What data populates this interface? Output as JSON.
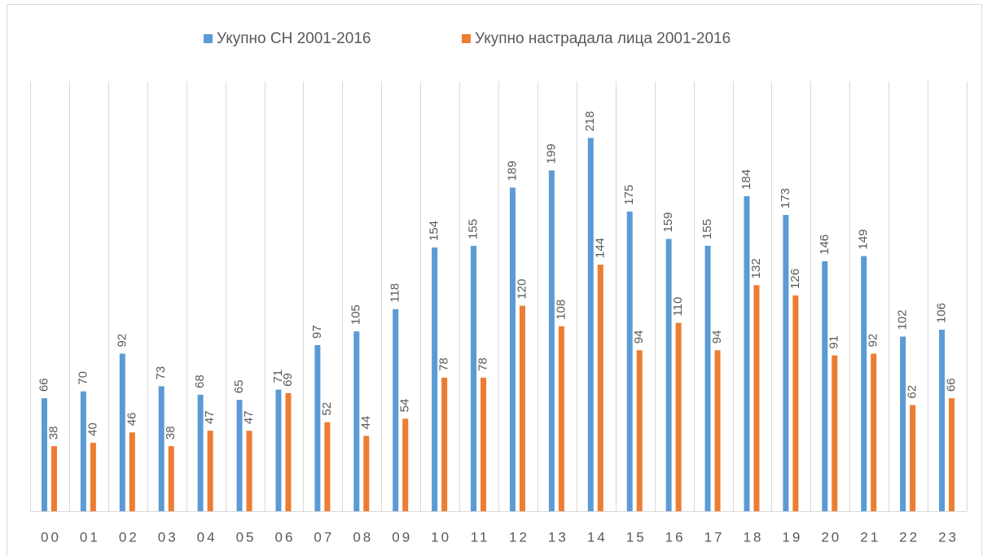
{
  "chart_data": {
    "type": "bar",
    "categories": [
      "00",
      "01",
      "02",
      "03",
      "04",
      "05",
      "06",
      "07",
      "08",
      "09",
      "10",
      "11",
      "12",
      "13",
      "14",
      "15",
      "16",
      "17",
      "18",
      "19",
      "20",
      "21",
      "22",
      "23"
    ],
    "series": [
      {
        "name": "Укупно СН 2001-2016",
        "color": "#5b9bd5",
        "values": [
          66,
          70,
          92,
          73,
          68,
          65,
          71,
          97,
          105,
          118,
          154,
          155,
          189,
          199,
          218,
          175,
          159,
          155,
          184,
          173,
          146,
          149,
          102,
          106
        ]
      },
      {
        "name": "Укупно настрадала лица 2001-2016",
        "color": "#ed7d31",
        "values": [
          38,
          40,
          46,
          38,
          47,
          47,
          69,
          52,
          44,
          54,
          78,
          78,
          120,
          108,
          144,
          94,
          110,
          94,
          132,
          126,
          91,
          92,
          62,
          66
        ]
      }
    ],
    "ylim": [
      0,
      251
    ],
    "grid": true,
    "legend": "top"
  }
}
